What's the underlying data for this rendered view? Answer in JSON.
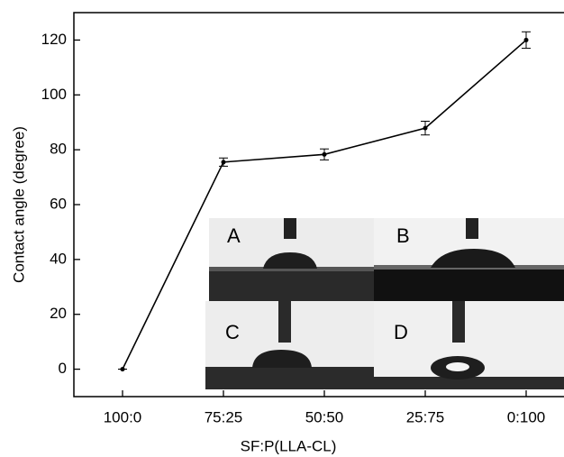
{
  "chart_data": {
    "type": "line",
    "x_label": "SF:P(LLA-CL)",
    "y_label": "Contact angle (degree)",
    "categories": [
      "100:0",
      "75:25",
      "50:50",
      "25:75",
      "0:100"
    ],
    "values": [
      0,
      75.5,
      78.3,
      87.9,
      120
    ],
    "errors": [
      0,
      1.5,
      2,
      2.5,
      3
    ],
    "color": "#000000",
    "ylim": [
      -10,
      130
    ],
    "yticks": [
      0,
      20,
      40,
      60,
      80,
      100,
      120
    ],
    "inset_labels": [
      "A",
      "B",
      "C",
      "D"
    ]
  }
}
